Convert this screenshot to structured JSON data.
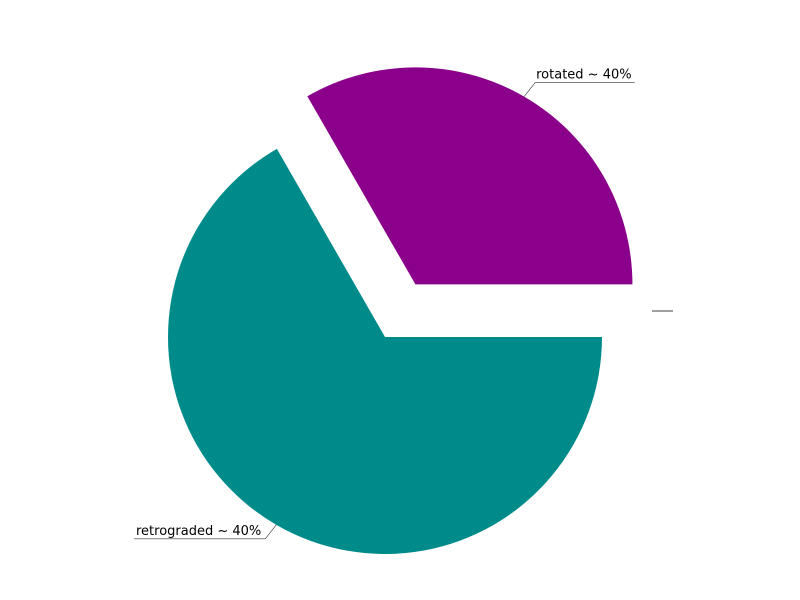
{
  "chart_data": {
    "type": "pie",
    "title": "",
    "slices": [
      {
        "label": "rotated ~ 40%",
        "value": 33.3,
        "color": "#8B008B",
        "exploded": true
      },
      {
        "label": "retrograded ~ 40%",
        "value": 66.7,
        "color": "#008B8B",
        "exploded": false
      }
    ],
    "start_angle_deg": 0,
    "direction": "counterclockwise",
    "legend": "none"
  }
}
